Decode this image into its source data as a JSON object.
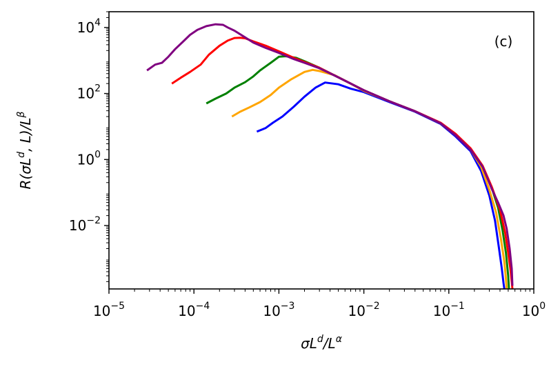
{
  "chart_data": {
    "type": "line",
    "title": "",
    "annotation": "(c)",
    "xlabel": {
      "main": "σL",
      "sup1": "d",
      "mid": "/L",
      "sup2": "α"
    },
    "ylabel": {
      "main": "R(σL",
      "sup1": "d",
      "mid": ", L)/L",
      "sup2": "β"
    },
    "x_scale": "log",
    "y_scale": "log",
    "xlim": [
      1e-05,
      1
    ],
    "ylim": [
      0.00012,
      30000.0
    ],
    "x_ticks": [
      {
        "base": "10",
        "exp": "−5",
        "value": 1e-05
      },
      {
        "base": "10",
        "exp": "−4",
        "value": 0.0001
      },
      {
        "base": "10",
        "exp": "−3",
        "value": 0.001
      },
      {
        "base": "10",
        "exp": "−2",
        "value": 0.01
      },
      {
        "base": "10",
        "exp": "−1",
        "value": 0.1
      },
      {
        "base": "10",
        "exp": "0",
        "value": 1
      }
    ],
    "y_ticks": [
      {
        "base": "10",
        "exp": "−2",
        "value": 0.01
      },
      {
        "base": "10",
        "exp": "0",
        "value": 1
      },
      {
        "base": "10",
        "exp": "2",
        "value": 100.0
      },
      {
        "base": "10",
        "exp": "4",
        "value": 10000.0
      }
    ],
    "grid": false,
    "legend": "none",
    "series": [
      {
        "color": "#0000ff",
        "x": [
          0.00055,
          0.0007,
          0.00085,
          0.0011,
          0.0015,
          0.002,
          0.0027,
          0.0035,
          0.005,
          0.007,
          0.01,
          0.02,
          0.04,
          0.08,
          0.12,
          0.18,
          0.24,
          0.3,
          0.35,
          0.39,
          0.42,
          0.44,
          0.45
        ],
        "y": [
          7,
          9,
          13,
          20,
          40,
          80,
          150,
          215,
          190,
          140,
          110,
          55,
          28,
          12,
          5,
          1.8,
          0.45,
          0.08,
          0.014,
          0.002,
          0.0005,
          0.00018,
          0.00012
        ]
      },
      {
        "color": "#ffa500",
        "x": [
          0.00028,
          0.00035,
          0.00045,
          0.0006,
          0.0008,
          0.001,
          0.0014,
          0.002,
          0.0025,
          0.003,
          0.0045,
          0.007,
          0.01,
          0.02,
          0.04,
          0.08,
          0.12,
          0.18,
          0.24,
          0.3,
          0.36,
          0.41,
          0.45,
          0.47,
          0.48
        ],
        "y": [
          20,
          28,
          38,
          55,
          90,
          150,
          270,
          450,
          520,
          480,
          360,
          200,
          120,
          58,
          29,
          12.5,
          5.5,
          2,
          0.6,
          0.12,
          0.025,
          0.004,
          0.0008,
          0.00025,
          0.00012
        ]
      },
      {
        "color": "#008000",
        "x": [
          0.00014,
          0.00018,
          0.00024,
          0.0003,
          0.0004,
          0.0005,
          0.0006,
          0.0008,
          0.001,
          0.0012,
          0.0016,
          0.002,
          0.003,
          0.005,
          0.01,
          0.02,
          0.04,
          0.08,
          0.12,
          0.18,
          0.25,
          0.32,
          0.38,
          0.43,
          0.47,
          0.5,
          0.51
        ],
        "y": [
          50,
          70,
          100,
          150,
          220,
          330,
          500,
          850,
          1300,
          1350,
          1200,
          950,
          600,
          310,
          125,
          58,
          29,
          12.5,
          5.5,
          2,
          0.6,
          0.14,
          0.035,
          0.007,
          0.0015,
          0.0003,
          0.00012
        ]
      },
      {
        "color": "#ff0000",
        "x": [
          5.5e-05,
          7e-05,
          9e-05,
          0.00012,
          0.00015,
          0.0002,
          0.00025,
          0.0003,
          0.00035,
          0.0004,
          0.0005,
          0.0007,
          0.001,
          0.0015,
          0.002,
          0.003,
          0.005,
          0.01,
          0.02,
          0.04,
          0.08,
          0.12,
          0.18,
          0.25,
          0.32,
          0.4,
          0.46,
          0.5,
          0.53,
          0.55,
          0.56
        ],
        "y": [
          200,
          300,
          450,
          750,
          1500,
          2800,
          4000,
          4800,
          4900,
          4700,
          3800,
          2800,
          1900,
          1200,
          900,
          600,
          310,
          125,
          58,
          29,
          13,
          6,
          2.2,
          0.65,
          0.15,
          0.03,
          0.006,
          0.0015,
          0.0005,
          0.0002,
          0.00012
        ]
      },
      {
        "color": "#800080",
        "x": [
          2.8e-05,
          3.5e-05,
          4.2e-05,
          5e-05,
          6e-05,
          7.5e-05,
          9e-05,
          0.00011,
          0.00014,
          0.00018,
          0.00022,
          0.00025,
          0.0003,
          0.0004,
          0.0005,
          0.0007,
          0.001,
          0.0015,
          0.002,
          0.003,
          0.005,
          0.01,
          0.02,
          0.04,
          0.08,
          0.12,
          0.18,
          0.25,
          0.32,
          0.38,
          0.44,
          0.48,
          0.52,
          0.55,
          0.56
        ],
        "y": [
          500,
          750,
          850,
          1300,
          2200,
          3800,
          6000,
          8500,
          11000,
          12500,
          12000,
          10000,
          8000,
          5000,
          3500,
          2400,
          1700,
          1100,
          850,
          580,
          310,
          125,
          58,
          29,
          12.5,
          5.5,
          2,
          0.6,
          0.13,
          0.05,
          0.02,
          0.008,
          0.002,
          0.0005,
          0.00015
        ]
      }
    ]
  }
}
